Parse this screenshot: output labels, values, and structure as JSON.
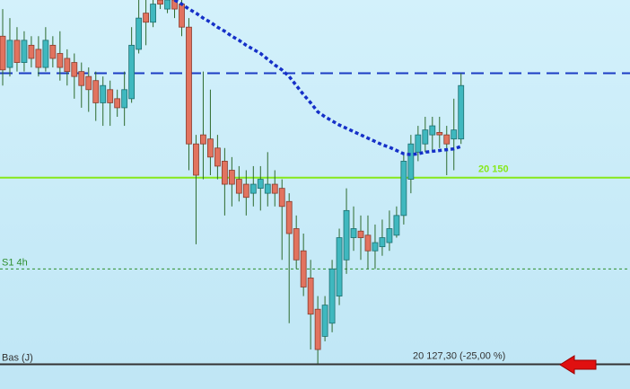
{
  "chart_data": {
    "type": "candlestick",
    "ylim": [
      20124.3,
      20171.6
    ],
    "open": [
      20167.2,
      20163.4,
      20166.7,
      20164.0,
      20166.1,
      20165.6,
      20163.4,
      20166.1,
      20165.1,
      20164.5,
      20164.0,
      20162.9,
      20162.3,
      20161.8,
      20159.1,
      20160.7,
      20159.6,
      20158.5,
      20159.6,
      20165.6,
      20170.0,
      20168.9,
      20171.6,
      20170.5,
      20171.6,
      20171.1,
      20168.3,
      20154.1,
      20155.2,
      20154.7,
      20153.6,
      20152.0,
      20150.9,
      20149.8,
      20149.2,
      20148.1,
      20148.7,
      20148.1,
      20149.2,
      20148.7,
      20147.1,
      20143.8,
      20141.1,
      20137.8,
      20134.0,
      20130.7,
      20132.3,
      20135.6,
      20140.0,
      20142.7,
      20143.5,
      20143.0,
      20141.1,
      20141.6,
      20142.1,
      20143.0,
      20145.4,
      20149.8,
      20153.1,
      20154.1,
      20155.2,
      20155.5,
      20155.2,
      20154.7,
      20154.7
    ],
    "high": [
      20170.5,
      20169.4,
      20168.3,
      20167.8,
      20167.2,
      20167.2,
      20168.3,
      20167.2,
      20167.8,
      20165.6,
      20165.1,
      20164.0,
      20163.4,
      20162.9,
      20162.3,
      20161.8,
      20160.7,
      20162.9,
      20168.3,
      20171.6,
      20171.6,
      20171.6,
      20171.6,
      20171.6,
      20171.6,
      20171.6,
      20169.4,
      20155.2,
      20162.9,
      20160.7,
      20155.2,
      20153.6,
      20152.5,
      20151.4,
      20150.9,
      20151.4,
      20151.4,
      20153.1,
      20150.9,
      20149.8,
      20148.1,
      20145.4,
      20143.2,
      20140.0,
      20135.6,
      20135.6,
      20140.0,
      20143.8,
      20148.7,
      20146.5,
      20145.4,
      20145.4,
      20144.3,
      20144.9,
      20146.0,
      20146.5,
      20153.1,
      20155.2,
      20156.3,
      20157.4,
      20157.4,
      20157.4,
      20156.3,
      20159.6,
      20162.7
    ],
    "low": [
      20161.2,
      20162.3,
      20162.9,
      20162.9,
      20163.4,
      20162.3,
      20162.9,
      20163.4,
      20161.8,
      20161.2,
      20159.6,
      20158.5,
      20158.0,
      20156.9,
      20156.3,
      20156.3,
      20157.4,
      20156.3,
      20159.1,
      20165.1,
      20166.1,
      20168.3,
      20170.5,
      20170.0,
      20169.4,
      20167.2,
      20150.9,
      20141.9,
      20149.8,
      20150.3,
      20149.8,
      20145.4,
      20146.5,
      20147.1,
      20145.4,
      20146.5,
      20146.0,
      20146.5,
      20146.5,
      20140.0,
      20132.3,
      20138.9,
      20135.6,
      20129.1,
      20127.4,
      20130.1,
      20131.2,
      20134.5,
      20138.3,
      20141.1,
      20140.0,
      20138.9,
      20138.9,
      20140.5,
      20141.1,
      20142.7,
      20144.3,
      20148.1,
      20152.0,
      20153.1,
      20153.1,
      20153.6,
      20150.3,
      20150.9,
      20154.1
    ],
    "close": [
      20163.1,
      20166.7,
      20164.0,
      20166.7,
      20164.5,
      20163.4,
      20166.7,
      20164.5,
      20163.4,
      20162.9,
      20162.3,
      20161.2,
      20160.7,
      20159.1,
      20161.2,
      20159.1,
      20158.5,
      20160.7,
      20166.1,
      20169.4,
      20168.9,
      20171.1,
      20171.1,
      20171.6,
      20170.5,
      20168.3,
      20154.1,
      20150.3,
      20154.1,
      20152.5,
      20151.4,
      20149.2,
      20149.2,
      20148.1,
      20147.6,
      20149.2,
      20149.8,
      20149.2,
      20148.1,
      20146.5,
      20143.2,
      20140.0,
      20136.7,
      20133.4,
      20129.1,
      20134.5,
      20138.9,
      20142.7,
      20146.0,
      20143.8,
      20142.7,
      20141.1,
      20142.1,
      20142.7,
      20143.8,
      20145.4,
      20152.0,
      20154.1,
      20155.2,
      20155.8,
      20156.3,
      20155.2,
      20154.1,
      20155.8,
      20161.2
    ],
    "moving_average": [
      null,
      null,
      null,
      null,
      null,
      null,
      null,
      null,
      null,
      null,
      null,
      null,
      null,
      null,
      null,
      null,
      null,
      null,
      null,
      null,
      null,
      null,
      null,
      null,
      20171.6,
      20171.1,
      20170.5,
      20170.0,
      20169.4,
      20168.9,
      20168.3,
      20167.8,
      20167.2,
      20166.7,
      20166.1,
      20165.6,
      20165.1,
      20164.4,
      20163.7,
      20163.1,
      20162.3,
      20161.2,
      20160.1,
      20159.1,
      20158.0,
      20157.4,
      20156.9,
      20156.4,
      20156.0,
      20155.6,
      20155.2,
      20154.8,
      20154.4,
      20154.0,
      20153.7,
      20153.3,
      20152.9,
      20152.8,
      20152.9,
      20153.1,
      20153.2,
      20153.3,
      20153.4,
      20153.5,
      20153.8
    ],
    "up_color": "#3fb8bf",
    "down_color": "#e2735f",
    "ma_color": "#1530c8",
    "levels": [
      {
        "value": 20162.7,
        "color": "#1b3cc4",
        "style": "dashed"
      },
      {
        "value": 20150,
        "label": "20 150",
        "color": "#86e81a",
        "style": "solid"
      },
      {
        "value": 20138.9,
        "name": "S1 4h",
        "color": "#2e8f2e",
        "style": "dotted"
      },
      {
        "value": 20127.3,
        "name": "Bas (J)",
        "label": "20 127,30 (-25,00 %)",
        "color": "#333333",
        "style": "solid"
      }
    ]
  }
}
